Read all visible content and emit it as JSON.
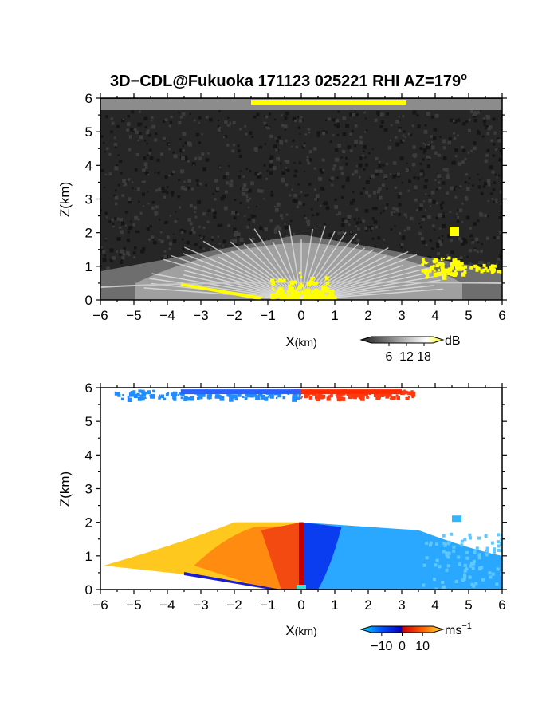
{
  "chart_data": {
    "title": "3D−CDL@Fukuoka 171123 025221 RHI AZ=179",
    "title_sup": "o",
    "panels": [
      {
        "type": "heatmap",
        "quantity": "backscatter intensity",
        "xlabel_main": "X",
        "xlabel_unit": "(km)",
        "ylabel": "Z(km)",
        "xlim": [
          -6,
          6
        ],
        "ylim": [
          0,
          6
        ],
        "x_ticks": [
          "−6",
          "−5",
          "−4",
          "−3",
          "−2",
          "−1",
          "0",
          "1",
          "2",
          "3",
          "4",
          "5",
          "6"
        ],
        "y_ticks": [
          "0",
          "1",
          "2",
          "3",
          "4",
          "5",
          "6"
        ],
        "colorbar": {
          "unit": "dB",
          "ticks": [
            "6",
            "12",
            "18"
          ],
          "values": [
            6,
            12,
            18
          ],
          "range": [
            0,
            21
          ],
          "colors": [
            "#202020",
            "#ffffff",
            "#ffff00"
          ]
        },
        "features": {
          "upper_layer_km": [
            5.7,
            5.95
          ],
          "strong_echo_layer_x_km": [
            -1.5,
            3.0
          ],
          "near_surface_fan_top_km": 2.0,
          "saturated_cells_x_km": [
            3.5,
            4.8
          ],
          "saturated_cells_z_km": [
            0.7,
            2.2
          ]
        }
      },
      {
        "type": "heatmap",
        "quantity": "radial velocity",
        "xlabel_main": "X",
        "xlabel_unit": "(km)",
        "ylabel": "Z(km)",
        "xlim": [
          -6,
          6
        ],
        "ylim": [
          0,
          6
        ],
        "x_ticks": [
          "−6",
          "−5",
          "−4",
          "−3",
          "−2",
          "−1",
          "0",
          "1",
          "2",
          "3",
          "4",
          "5",
          "6"
        ],
        "y_ticks": [
          "0",
          "1",
          "2",
          "3",
          "4",
          "5",
          "6"
        ],
        "colorbar": {
          "unit": "ms",
          "unit_sup": "−1",
          "ticks": [
            "−10",
            "0",
            "10"
          ],
          "values": [
            -10,
            0,
            10
          ],
          "range": [
            -15,
            15
          ],
          "colors": [
            "#00e0ff",
            "#0050ff",
            "#0000c0",
            "#d00000",
            "#ff6000",
            "#ffe040"
          ]
        },
        "features": {
          "left_side_velocity_ms": 8,
          "right_side_velocity_ms": -9,
          "boundary_layer_top_km": 2.0,
          "upper_layer_km": [
            5.7,
            5.95
          ]
        }
      }
    ]
  }
}
